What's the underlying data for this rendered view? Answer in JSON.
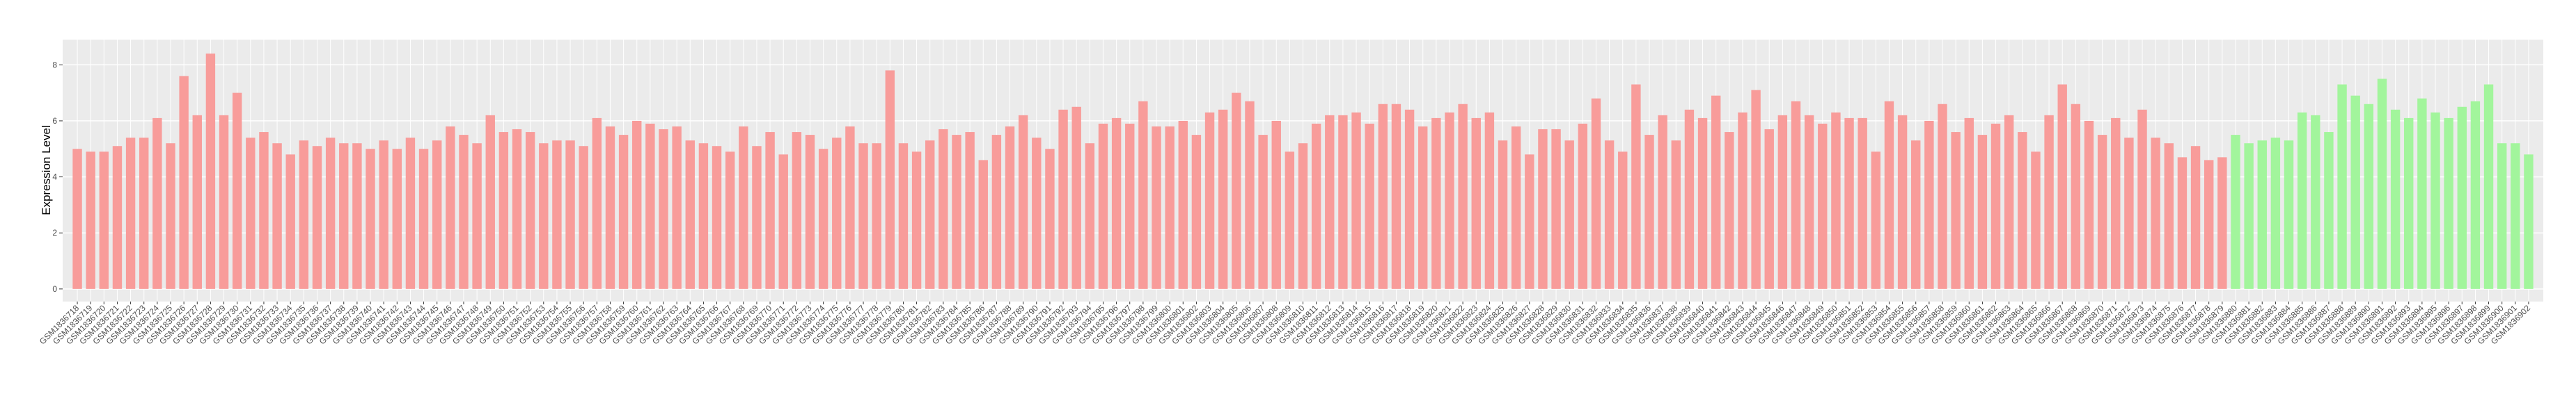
{
  "chart_data": {
    "type": "bar",
    "y_label": "Expression Level",
    "categories": [
      "GSM1836718",
      "GSM1836719",
      "GSM1836720",
      "GSM1836721",
      "GSM1836722",
      "GSM1836723",
      "GSM1836724",
      "GSM1836725",
      "GSM1836726",
      "GSM1836727",
      "GSM1836728",
      "GSM1836729",
      "GSM1836730",
      "GSM1836731",
      "GSM1836732",
      "GSM1836733",
      "GSM1836734",
      "GSM1836735",
      "GSM1836736",
      "GSM1836737",
      "GSM1836738",
      "GSM1836739",
      "GSM1836740",
      "GSM1836741",
      "GSM1836742",
      "GSM1836743",
      "GSM1836744",
      "GSM1836745",
      "GSM1836746",
      "GSM1836747",
      "GSM1836748",
      "GSM1836749",
      "GSM1836750",
      "GSM1836751",
      "GSM1836752",
      "GSM1836753",
      "GSM1836754",
      "GSM1836755",
      "GSM1836756",
      "GSM1836757",
      "GSM1836758",
      "GSM1836759",
      "GSM1836760",
      "GSM1836761",
      "GSM1836762",
      "GSM1836763",
      "GSM1836764",
      "GSM1836765",
      "GSM1836766",
      "GSM1836767",
      "GSM1836768",
      "GSM1836769",
      "GSM1836770",
      "GSM1836771",
      "GSM1836772",
      "GSM1836773",
      "GSM1836774",
      "GSM1836775",
      "GSM1836776",
      "GSM1836777",
      "GSM1836778",
      "GSM1836779",
      "GSM1836780",
      "GSM1836781",
      "GSM1836782",
      "GSM1836783",
      "GSM1836784",
      "GSM1836785",
      "GSM1836786",
      "GSM1836787",
      "GSM1836788",
      "GSM1836789",
      "GSM1836790",
      "GSM1836791",
      "GSM1836792",
      "GSM1836793",
      "GSM1836794",
      "GSM1836795",
      "GSM1836796",
      "GSM1836797",
      "GSM1836798",
      "GSM1836799",
      "GSM1836800",
      "GSM1836801",
      "GSM1836802",
      "GSM1836803",
      "GSM1836804",
      "GSM1836805",
      "GSM1836806",
      "GSM1836807",
      "GSM1836808",
      "GSM1836809",
      "GSM1836810",
      "GSM1836811",
      "GSM1836812",
      "GSM1836813",
      "GSM1836814",
      "GSM1836815",
      "GSM1836816",
      "GSM1836817",
      "GSM1836818",
      "GSM1836819",
      "GSM1836820",
      "GSM1836821",
      "GSM1836822",
      "GSM1836823",
      "GSM1836824",
      "GSM1836825",
      "GSM1836826",
      "GSM1836827",
      "GSM1836828",
      "GSM1836829",
      "GSM1836830",
      "GSM1836831",
      "GSM1836832",
      "GSM1836833",
      "GSM1836834",
      "GSM1836835",
      "GSM1836836",
      "GSM1836837",
      "GSM1836838",
      "GSM1836839",
      "GSM1836840",
      "GSM1836841",
      "GSM1836842",
      "GSM1836843",
      "GSM1836844",
      "GSM1836845",
      "GSM1836846",
      "GSM1836847",
      "GSM1836848",
      "GSM1836849",
      "GSM1836850",
      "GSM1836851",
      "GSM1836852",
      "GSM1836853",
      "GSM1836854",
      "GSM1836855",
      "GSM1836856",
      "GSM1836857",
      "GSM1836858",
      "GSM1836859",
      "GSM1836860",
      "GSM1836861",
      "GSM1836862",
      "GSM1836863",
      "GSM1836864",
      "GSM1836865",
      "GSM1836866",
      "GSM1836867",
      "GSM1836868",
      "GSM1836869",
      "GSM1836870",
      "GSM1836871",
      "GSM1836872",
      "GSM1836873",
      "GSM1836874",
      "GSM1836875",
      "GSM1836876",
      "GSM1836877",
      "GSM1836878",
      "GSM1836879",
      "GSM1836880",
      "GSM1836881",
      "GSM1836882",
      "GSM1836883",
      "GSM1836884",
      "GSM1836885",
      "GSM1836886",
      "GSM1836887",
      "GSM1836888",
      "GSM1836889",
      "GSM1836890",
      "GSM1836891",
      "GSM1836892",
      "GSM1836893",
      "GSM1836894",
      "GSM1836895",
      "GSM1836896",
      "GSM1836897",
      "GSM1836898",
      "GSM1836899",
      "GSM1836900",
      "GSM1836901",
      "GSM1836902"
    ],
    "values": [
      5.0,
      4.9,
      4.9,
      5.1,
      5.4,
      5.4,
      6.1,
      5.2,
      7.6,
      6.2,
      8.4,
      6.2,
      7.0,
      5.4,
      5.6,
      5.2,
      4.8,
      5.3,
      5.1,
      5.4,
      5.2,
      5.2,
      5.0,
      5.3,
      5.0,
      5.4,
      5.0,
      5.3,
      5.8,
      5.5,
      5.2,
      6.2,
      5.6,
      5.7,
      5.6,
      5.2,
      5.3,
      5.3,
      5.1,
      6.1,
      5.8,
      5.5,
      6.0,
      5.9,
      5.7,
      5.8,
      5.3,
      5.2,
      5.1,
      4.9,
      5.8,
      5.1,
      5.6,
      4.8,
      5.6,
      5.5,
      5.0,
      5.4,
      5.8,
      5.2,
      5.2,
      7.8,
      5.2,
      4.9,
      5.3,
      5.7,
      5.5,
      5.6,
      4.6,
      5.5,
      5.8,
      6.2,
      5.4,
      5.0,
      6.4,
      6.5,
      5.2,
      5.9,
      6.1,
      5.9,
      6.7,
      5.8,
      5.8,
      6.0,
      5.5,
      6.3,
      6.4,
      7.0,
      6.7,
      5.5,
      6.0,
      4.9,
      5.2,
      5.9,
      6.2,
      6.2,
      6.3,
      5.9,
      6.6,
      6.6,
      6.4,
      5.8,
      6.1,
      6.3,
      6.6,
      6.1,
      6.3,
      5.3,
      5.8,
      4.8,
      5.7,
      5.7,
      5.3,
      5.9,
      6.8,
      5.3,
      4.9,
      7.3,
      5.5,
      6.2,
      5.3,
      6.4,
      6.1,
      6.9,
      5.6,
      6.3,
      7.1,
      5.7,
      6.2,
      6.7,
      6.2,
      5.9,
      6.3,
      6.1,
      6.1,
      4.9,
      6.7,
      6.2,
      5.3,
      6.0,
      6.6,
      5.6,
      6.1,
      5.5,
      5.9,
      6.2,
      5.6,
      4.9,
      6.2,
      7.3,
      6.6,
      6.0,
      5.5,
      6.1,
      5.4,
      6.4,
      5.4,
      5.2,
      4.7,
      5.1,
      4.6,
      4.7,
      5.5,
      5.2,
      5.3,
      5.4,
      5.3,
      6.3,
      6.2,
      5.6,
      7.3,
      6.9,
      6.6,
      7.5,
      6.4,
      6.1,
      6.8,
      6.3,
      6.1,
      6.5,
      6.7,
      7.3,
      5.2,
      5.2,
      4.8
    ],
    "colors": [
      "#f89c9a",
      "#f89c9a",
      "#f89c9a",
      "#f89c9a",
      "#f89c9a",
      "#f89c9a",
      "#f89c9a",
      "#f89c9a",
      "#f89c9a",
      "#f89c9a",
      "#f89c9a",
      "#f89c9a",
      "#f89c9a",
      "#f89c9a",
      "#f89c9a",
      "#f89c9a",
      "#f89c9a",
      "#f89c9a",
      "#f89c9a",
      "#f89c9a",
      "#f89c9a",
      "#f89c9a",
      "#f89c9a",
      "#f89c9a",
      "#f89c9a",
      "#f89c9a",
      "#f89c9a",
      "#f89c9a",
      "#f89c9a",
      "#f89c9a",
      "#f89c9a",
      "#f89c9a",
      "#f89c9a",
      "#f89c9a",
      "#f89c9a",
      "#f89c9a",
      "#f89c9a",
      "#f89c9a",
      "#f89c9a",
      "#f89c9a",
      "#f89c9a",
      "#f89c9a",
      "#f89c9a",
      "#f89c9a",
      "#f89c9a",
      "#f89c9a",
      "#f89c9a",
      "#f89c9a",
      "#f89c9a",
      "#f89c9a",
      "#f89c9a",
      "#f89c9a",
      "#f89c9a",
      "#f89c9a",
      "#f89c9a",
      "#f89c9a",
      "#f89c9a",
      "#f89c9a",
      "#f89c9a",
      "#f89c9a",
      "#f89c9a",
      "#f89c9a",
      "#f89c9a",
      "#f89c9a",
      "#f89c9a",
      "#f89c9a",
      "#f89c9a",
      "#f89c9a",
      "#f89c9a",
      "#f89c9a",
      "#f89c9a",
      "#f89c9a",
      "#f89c9a",
      "#f89c9a",
      "#f89c9a",
      "#f89c9a",
      "#f89c9a",
      "#f89c9a",
      "#f89c9a",
      "#f89c9a",
      "#f89c9a",
      "#f89c9a",
      "#f89c9a",
      "#f89c9a",
      "#f89c9a",
      "#f89c9a",
      "#f89c9a",
      "#f89c9a",
      "#f89c9a",
      "#f89c9a",
      "#f89c9a",
      "#f89c9a",
      "#f89c9a",
      "#f89c9a",
      "#f89c9a",
      "#f89c9a",
      "#f89c9a",
      "#f89c9a",
      "#f89c9a",
      "#f89c9a",
      "#f89c9a",
      "#f89c9a",
      "#f89c9a",
      "#f89c9a",
      "#f89c9a",
      "#f89c9a",
      "#f89c9a",
      "#f89c9a",
      "#f89c9a",
      "#f89c9a",
      "#f89c9a",
      "#f89c9a",
      "#f89c9a",
      "#f89c9a",
      "#f89c9a",
      "#f89c9a",
      "#f89c9a",
      "#f89c9a",
      "#f89c9a",
      "#f89c9a",
      "#f89c9a",
      "#f89c9a",
      "#f89c9a",
      "#f89c9a",
      "#f89c9a",
      "#f89c9a",
      "#f89c9a",
      "#f89c9a",
      "#f89c9a",
      "#f89c9a",
      "#f89c9a",
      "#f89c9a",
      "#f89c9a",
      "#f89c9a",
      "#f89c9a",
      "#f89c9a",
      "#f89c9a",
      "#f89c9a",
      "#f89c9a",
      "#f89c9a",
      "#f89c9a",
      "#f89c9a",
      "#f89c9a",
      "#f89c9a",
      "#f89c9a",
      "#f89c9a",
      "#f89c9a",
      "#f89c9a",
      "#f89c9a",
      "#f89c9a",
      "#f89c9a",
      "#f89c9a",
      "#f89c9a",
      "#f89c9a",
      "#f89c9a",
      "#f89c9a",
      "#f89c9a",
      "#f89c9a",
      "#f89c9a",
      "#f89c9a",
      "#f89c9a",
      "#f89c9a",
      "#a2f59c",
      "#a2f59c",
      "#a2f59c",
      "#a2f59c",
      "#a2f59c",
      "#a2f59c",
      "#a2f59c",
      "#a2f59c",
      "#a2f59c",
      "#a2f59c",
      "#a2f59c",
      "#a2f59c",
      "#a2f59c",
      "#a2f59c",
      "#a2f59c",
      "#a2f59c",
      "#a2f59c",
      "#a2f59c",
      "#a2f59c",
      "#a2f59c",
      "#a2f59c",
      "#a2f59c",
      "#a2f59c"
    ],
    "ylim": [
      -0.45,
      8.9
    ],
    "yticks": [
      0,
      2,
      4,
      6,
      8
    ],
    "grid": true
  }
}
